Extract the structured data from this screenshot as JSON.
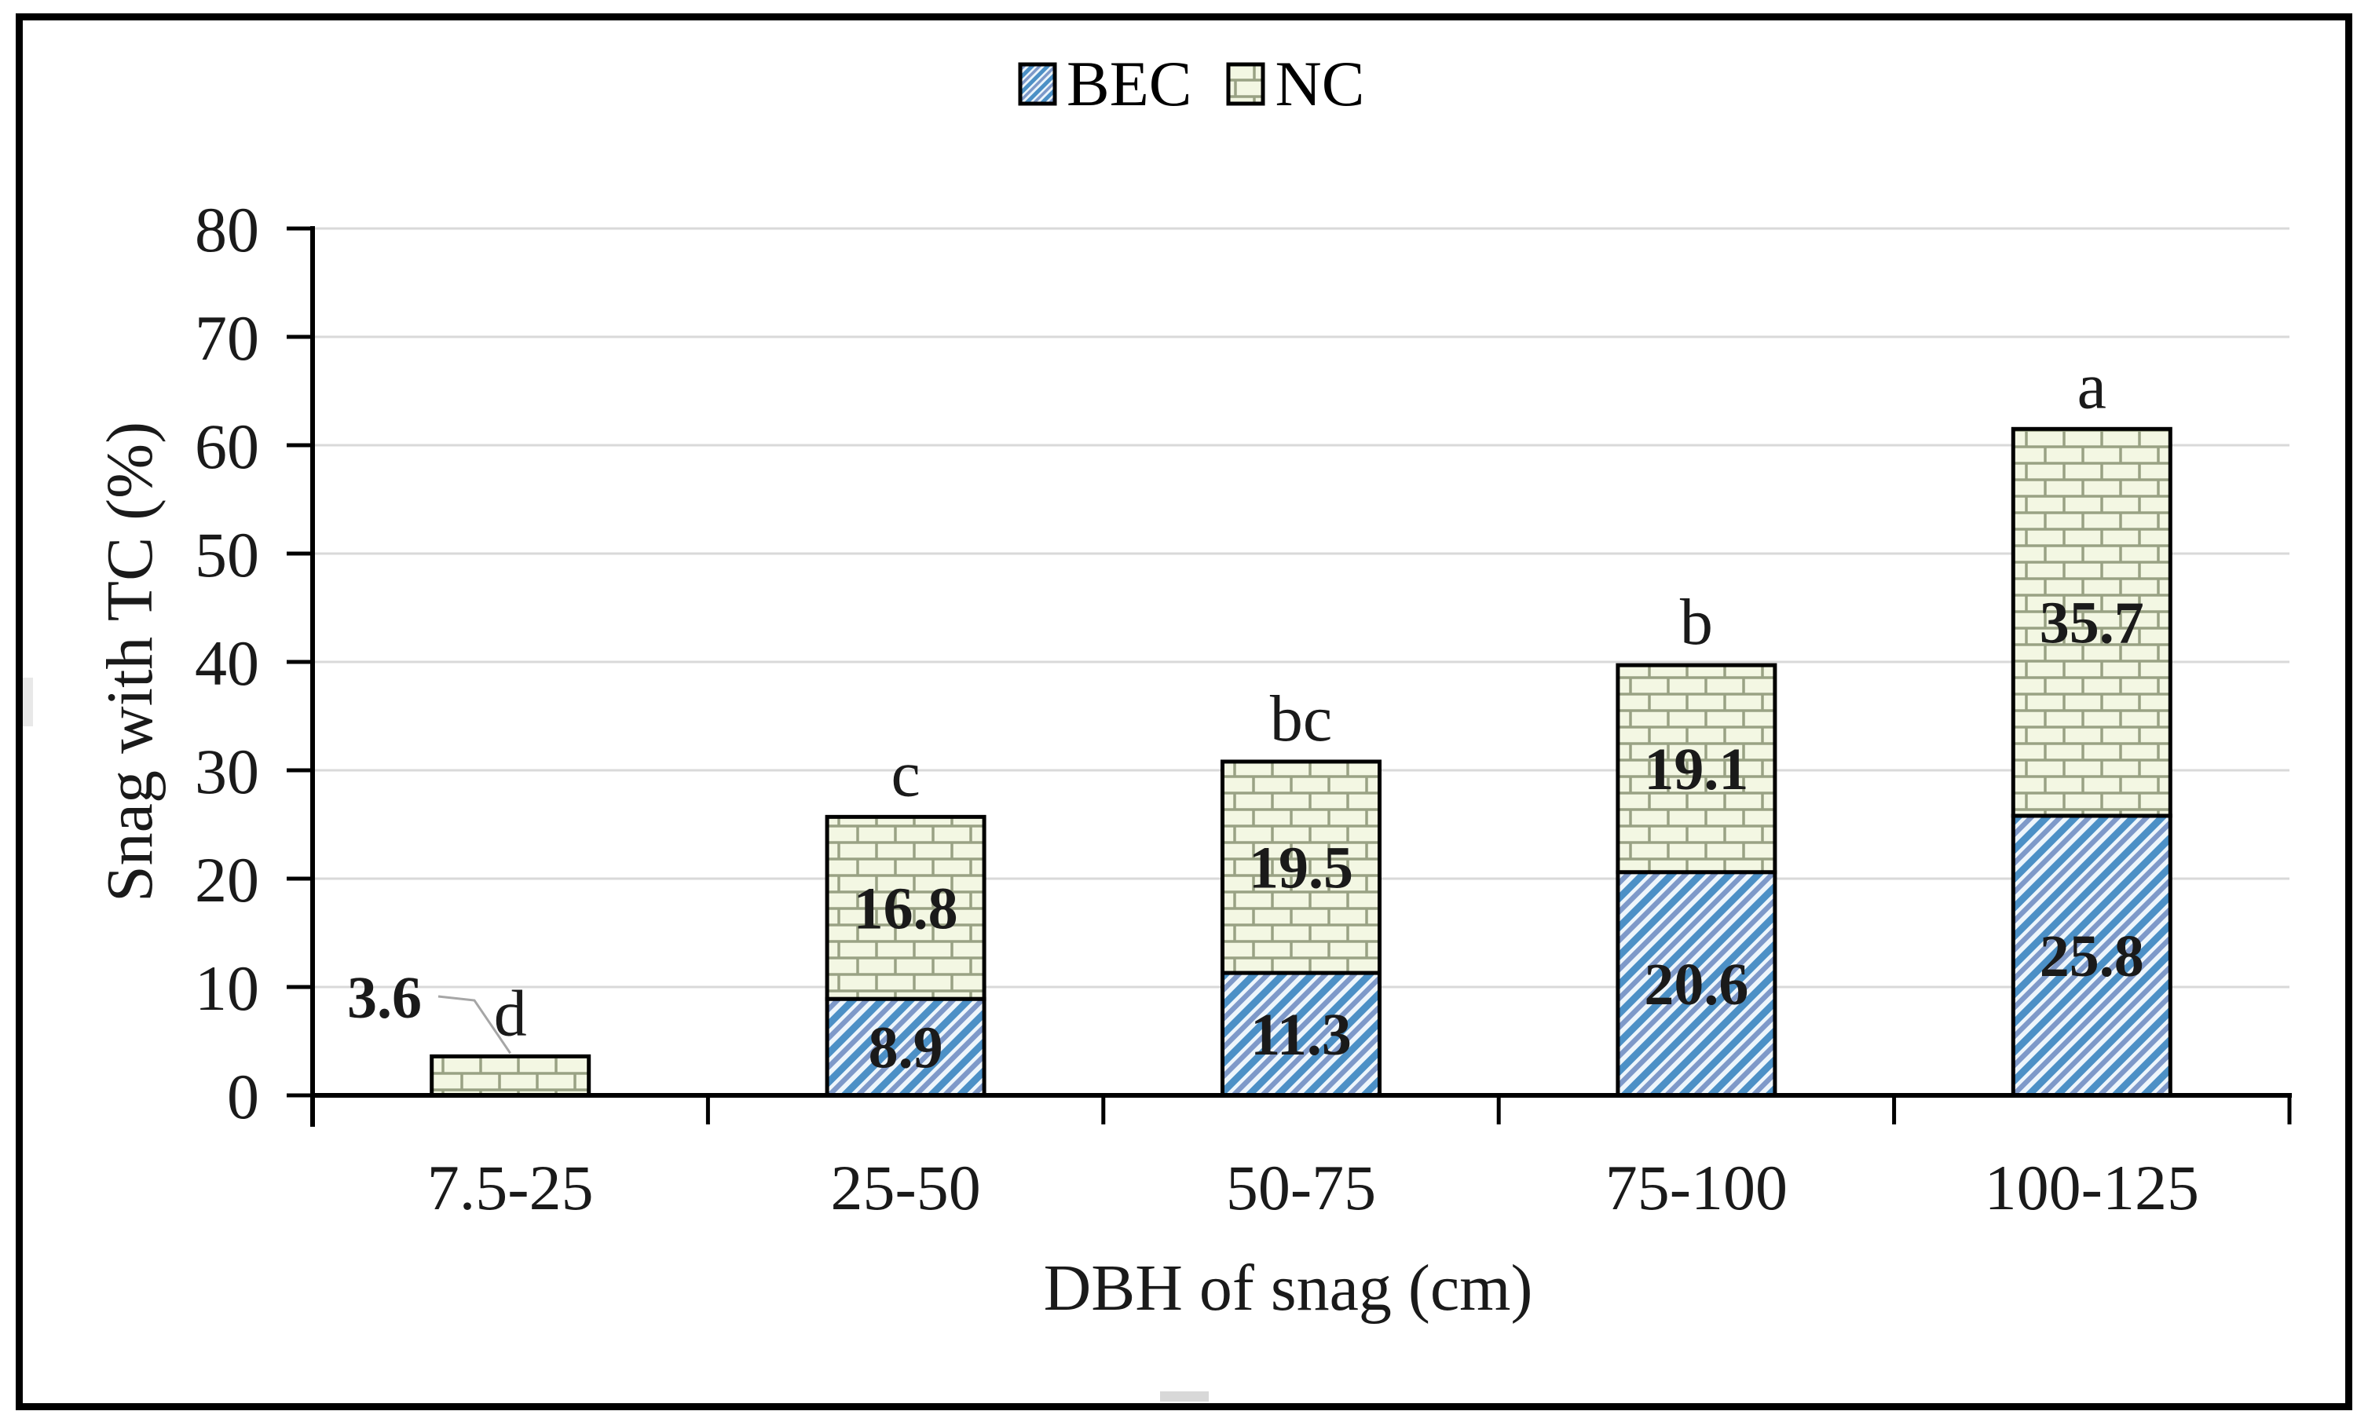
{
  "figure": {
    "background": "#ffffff",
    "border_color": "#000000",
    "gridline_color": "#d9d9d9",
    "axis_color": "#000000",
    "leader_line_color": "#a6a6a6"
  },
  "legend": {
    "items": [
      {
        "label": "BEC",
        "swatch": "bec-diagonal-hatch-swatch",
        "color": "#4c90c6"
      },
      {
        "label": "NC",
        "swatch": "nc-brick-swatch",
        "color": "#99a284"
      }
    ]
  },
  "chart_data": {
    "type": "bar",
    "stacked": true,
    "title": "",
    "xlabel": "DBH of snag (cm)",
    "ylabel": "Snag with TC (%)",
    "categories": [
      "7.5-25",
      "25-50",
      "50-75",
      "75-100",
      "100-125"
    ],
    "series": [
      {
        "name": "BEC",
        "pattern": "blue-diagonal-stripes",
        "stripe_color": "#4c90c6",
        "stripe_color2": "#7e99c9",
        "bg_color": "#eef6fc",
        "values": [
          0,
          8.9,
          11.3,
          20.6,
          25.8
        ]
      },
      {
        "name": "NC",
        "pattern": "green-brick",
        "line_color": "#99a284",
        "bg_color": "#f3f7e3",
        "values": [
          3.6,
          16.8,
          19.5,
          19.1,
          35.7
        ]
      }
    ],
    "stack_totals": [
      3.6,
      25.7,
      30.8,
      39.7,
      61.5
    ],
    "significance_letters": [
      "d",
      "c",
      "bc",
      "b",
      "a"
    ],
    "outside_label": {
      "text": "3.6",
      "category_index": 0,
      "series": "NC",
      "has_leader_line": true
    },
    "ylim": [
      0,
      80
    ],
    "ytick_interval": 10,
    "yticks": [
      0,
      10,
      20,
      30,
      40,
      50,
      60,
      70,
      80
    ],
    "grid": true,
    "legend_position": "top-center"
  }
}
